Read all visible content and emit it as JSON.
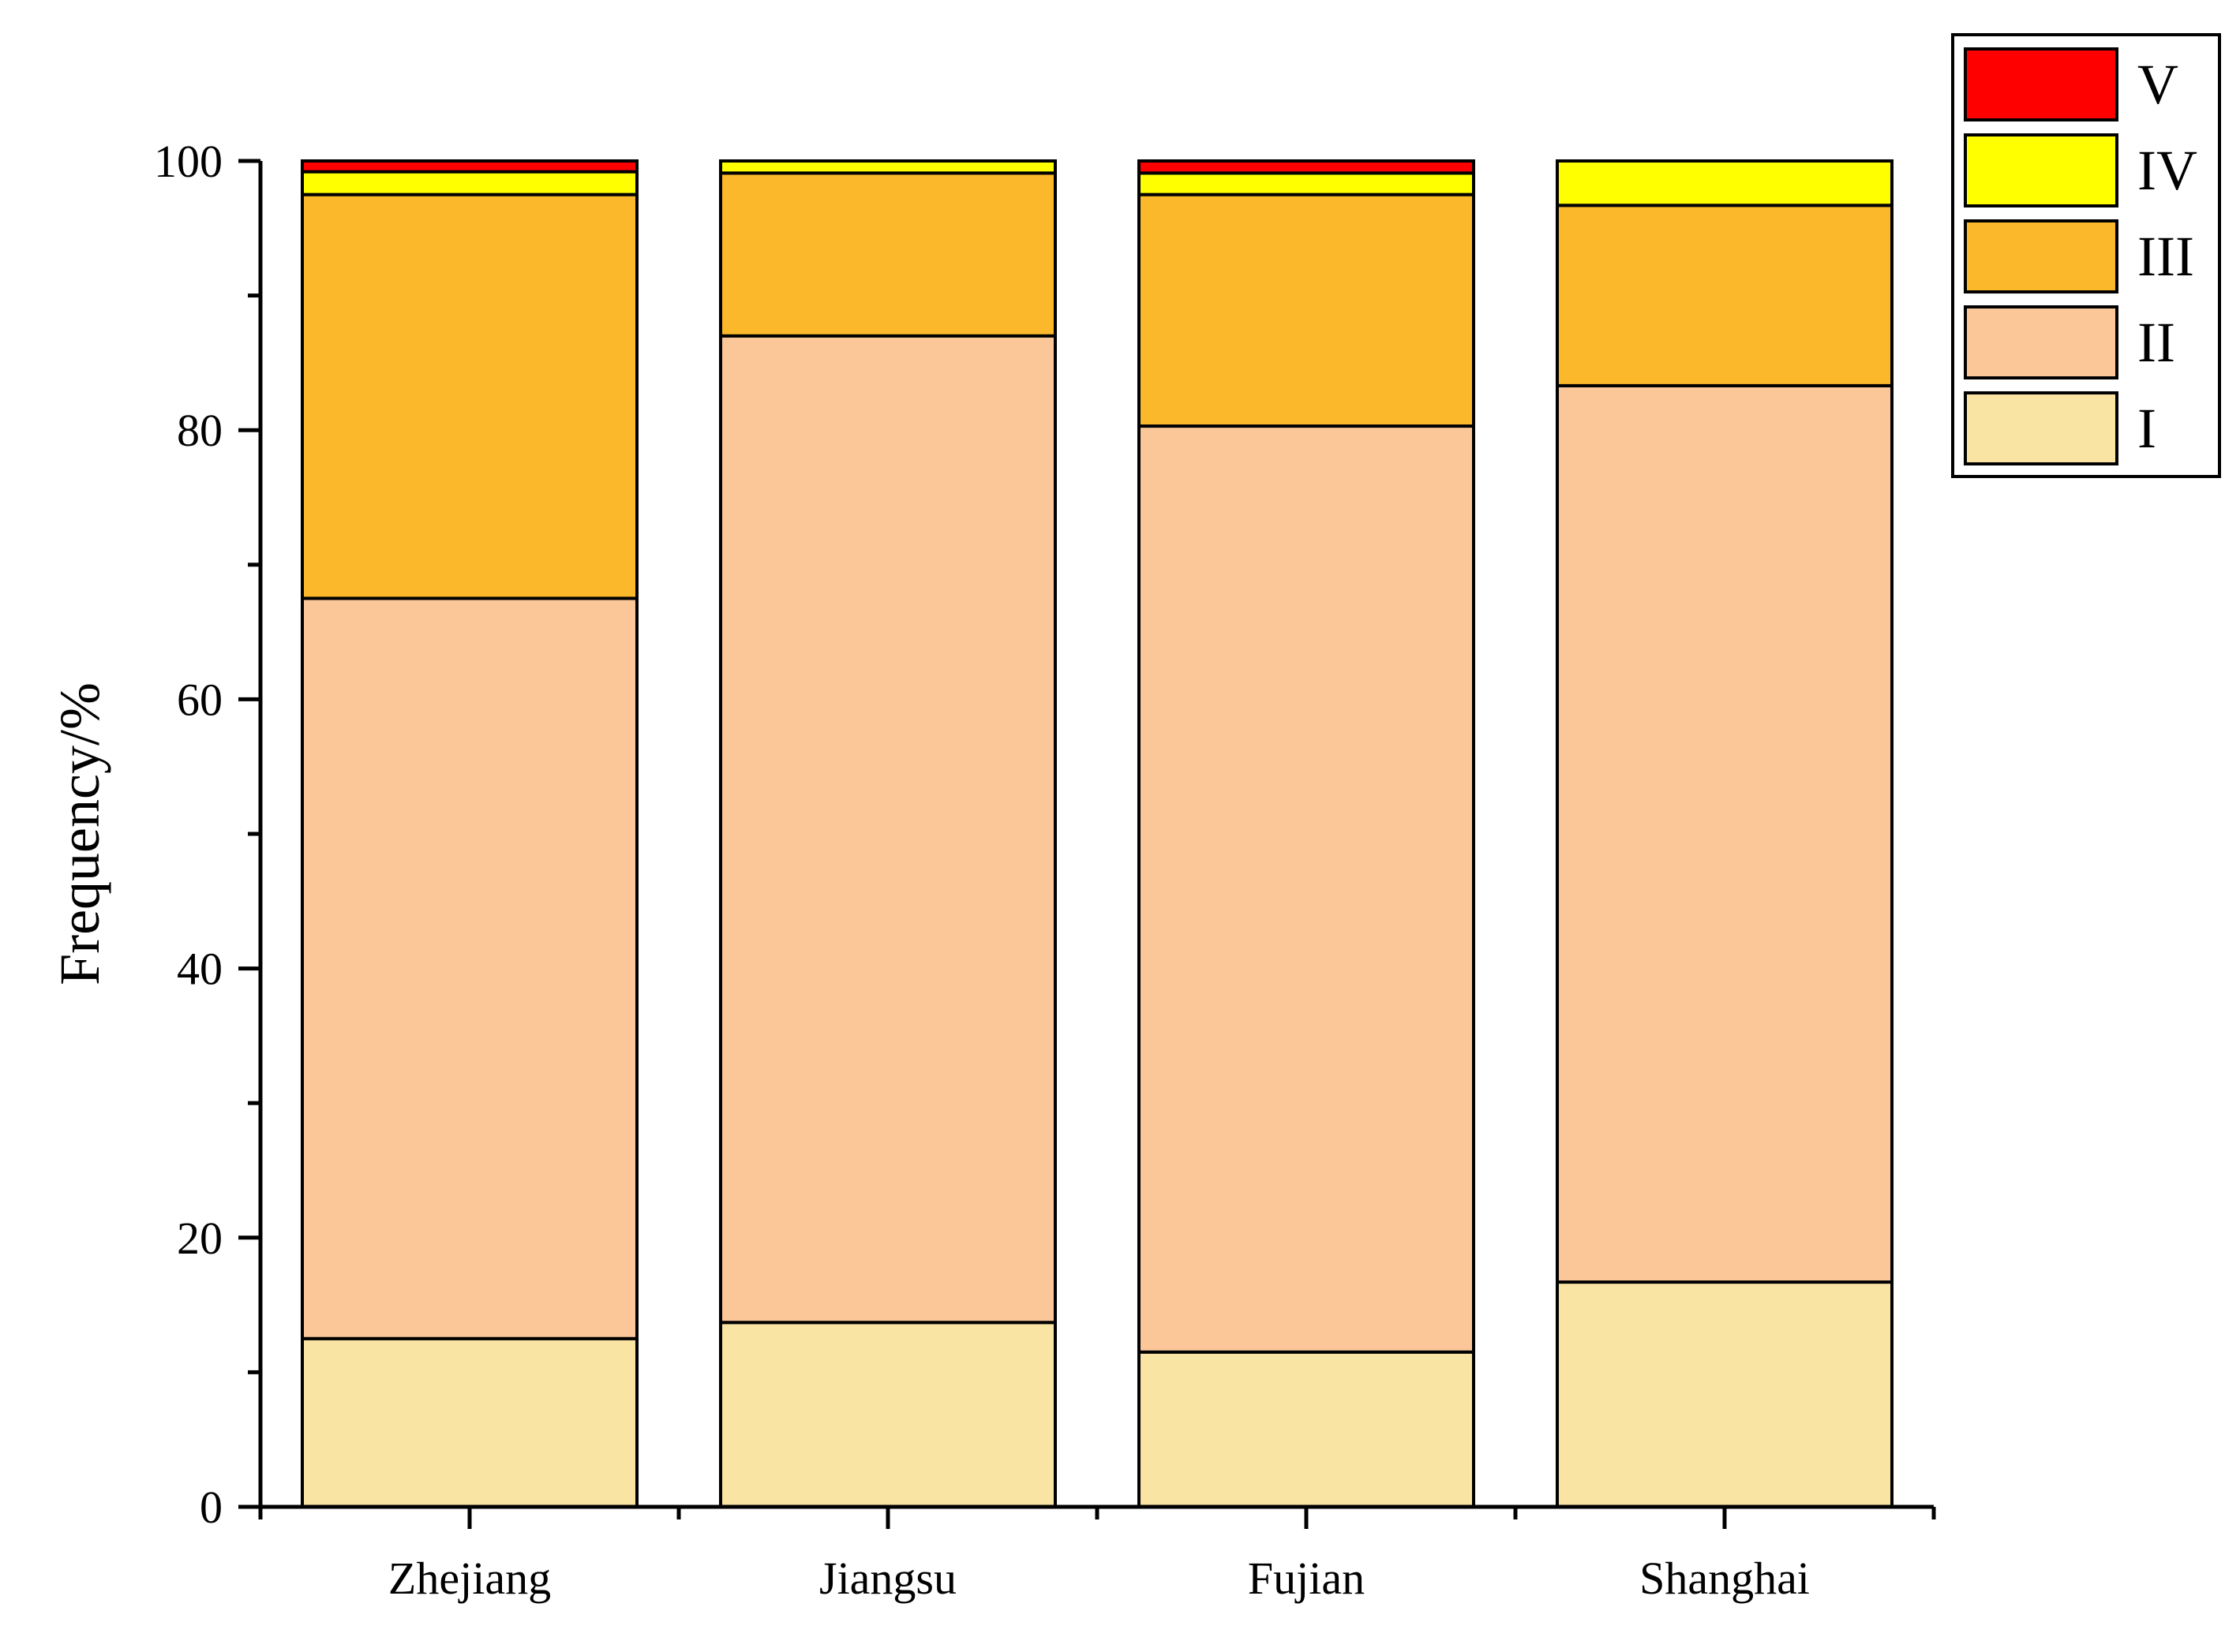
{
  "chart_data": {
    "type": "bar",
    "stacked": true,
    "title": "",
    "xlabel": "",
    "ylabel": "Frequency/%",
    "ylim": [
      0,
      100
    ],
    "yticks": [
      0,
      20,
      40,
      60,
      80,
      100
    ],
    "ytick_labels": [
      "0",
      "20",
      "40",
      "60",
      "80",
      "100"
    ],
    "categories": [
      "Zhejiang",
      "Jiangsu",
      "Fujian",
      "Shanghai"
    ],
    "series": [
      {
        "name": "I",
        "color": "#FAE4A3",
        "values": [
          12.5,
          13.7,
          11.5,
          16.7
        ]
      },
      {
        "name": "II",
        "color": "#FBC799",
        "values": [
          55.0,
          73.3,
          68.8,
          66.6
        ]
      },
      {
        "name": "III",
        "color": "#FBB82B",
        "values": [
          30.0,
          12.1,
          17.2,
          13.4
        ]
      },
      {
        "name": "IV",
        "color": "#FFFF00",
        "values": [
          1.7,
          0.9,
          1.6,
          3.3
        ]
      },
      {
        "name": "V",
        "color": "#FF0000",
        "values": [
          0.8,
          0.0,
          0.9,
          0.0
        ]
      }
    ],
    "legend": {
      "position": "top-right",
      "order": [
        "V",
        "IV",
        "III",
        "II",
        "I"
      ]
    },
    "grid": false
  }
}
